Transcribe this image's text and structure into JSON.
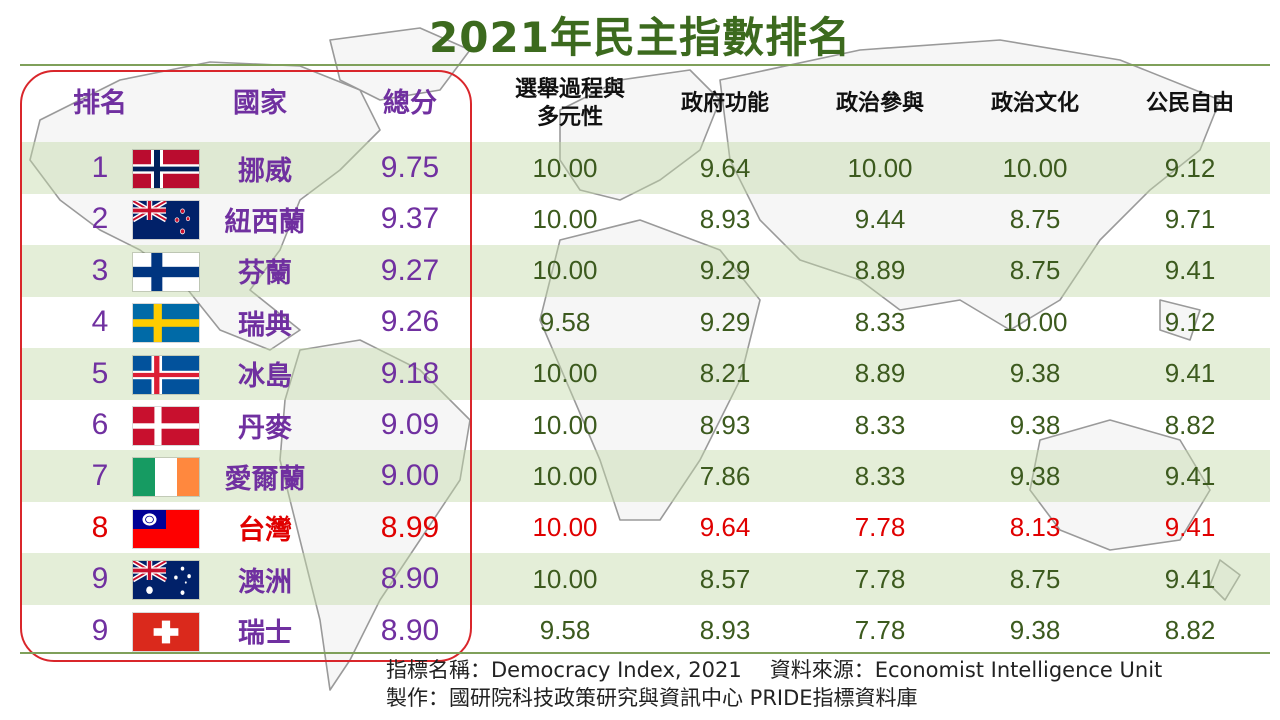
{
  "title": "2021年民主指數排名",
  "headers": {
    "rank": "排名",
    "country": "國家",
    "total": "總分",
    "electoral_line1": "選舉過程與",
    "electoral_line2": "多元性",
    "government": "政府功能",
    "participation": "政治參與",
    "culture": "政治文化",
    "liberties": "公民自由"
  },
  "rows": [
    {
      "rank": "1",
      "country": "挪威",
      "flag": "norway-flag",
      "total": "9.75",
      "electoral": "10.00",
      "government": "9.64",
      "participation": "10.00",
      "culture": "10.00",
      "liberties": "9.12"
    },
    {
      "rank": "2",
      "country": "紐西蘭",
      "flag": "new-zealand-flag",
      "total": "9.37",
      "electoral": "10.00",
      "government": "8.93",
      "participation": "9.44",
      "culture": "8.75",
      "liberties": "9.71"
    },
    {
      "rank": "3",
      "country": "芬蘭",
      "flag": "finland-flag",
      "total": "9.27",
      "electoral": "10.00",
      "government": "9.29",
      "participation": "8.89",
      "culture": "8.75",
      "liberties": "9.41"
    },
    {
      "rank": "4",
      "country": "瑞典",
      "flag": "sweden-flag",
      "total": "9.26",
      "electoral": "9.58",
      "government": "9.29",
      "participation": "8.33",
      "culture": "10.00",
      "liberties": "9.12"
    },
    {
      "rank": "5",
      "country": "冰島",
      "flag": "iceland-flag",
      "total": "9.18",
      "electoral": "10.00",
      "government": "8.21",
      "participation": "8.89",
      "culture": "9.38",
      "liberties": "9.41"
    },
    {
      "rank": "6",
      "country": "丹麥",
      "flag": "denmark-flag",
      "total": "9.09",
      "electoral": "10.00",
      "government": "8.93",
      "participation": "8.33",
      "culture": "9.38",
      "liberties": "8.82"
    },
    {
      "rank": "7",
      "country": "愛爾蘭",
      "flag": "ireland-flag",
      "total": "9.00",
      "electoral": "10.00",
      "government": "7.86",
      "participation": "8.33",
      "culture": "9.38",
      "liberties": "9.41"
    },
    {
      "rank": "8",
      "country": "台灣",
      "flag": "taiwan-flag",
      "total": "8.99",
      "electoral": "10.00",
      "government": "9.64",
      "participation": "7.78",
      "culture": "8.13",
      "liberties": "9.41"
    },
    {
      "rank": "9",
      "country": "澳洲",
      "flag": "australia-flag",
      "total": "8.90",
      "electoral": "10.00",
      "government": "8.57",
      "participation": "7.78",
      "culture": "8.75",
      "liberties": "9.41"
    },
    {
      "rank": "9",
      "country": "瑞士",
      "flag": "switzerland-flag",
      "total": "8.90",
      "electoral": "9.58",
      "government": "8.93",
      "participation": "7.78",
      "culture": "9.38",
      "liberties": "8.82"
    }
  ],
  "highlight_country": "台灣",
  "footer": {
    "index_name": "指標名稱：Democracy Index, 2021",
    "source": "資料來源：Economist Intelligence Unit",
    "producer": "製作：國研院科技政策研究與資訊中心 PRIDE指標資料庫"
  },
  "colors": {
    "title": "#3c6a1e",
    "highlight": "#e00000",
    "label": "#7030a0",
    "frame": "#d9262b",
    "row_shade": "#c4daa8"
  }
}
